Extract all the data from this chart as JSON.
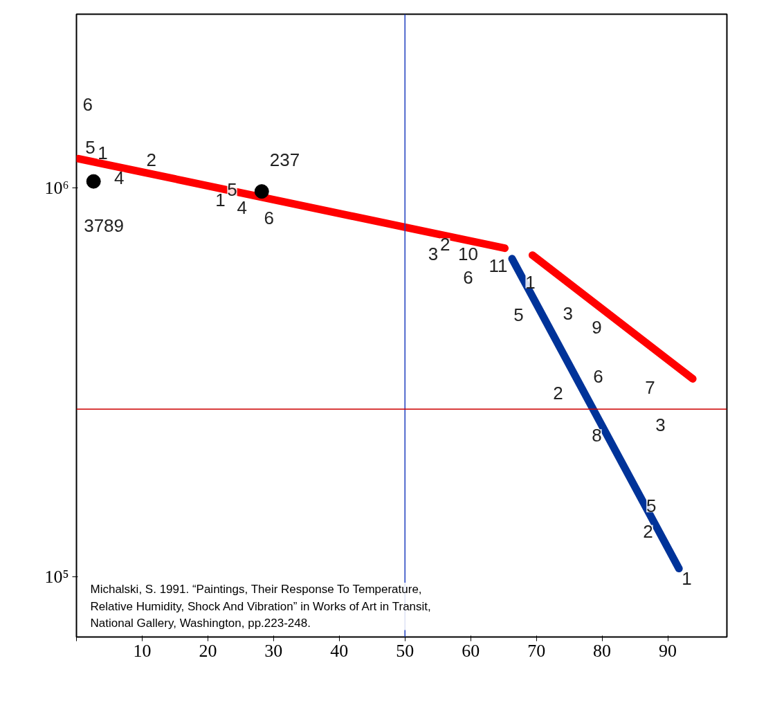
{
  "chart_data": {
    "type": "line",
    "log": "y",
    "grid": false,
    "xlim": [
      0,
      99
    ],
    "ylim": [
      70000,
      2800000
    ],
    "xticks": [
      {
        "value": 0,
        "label": null
      },
      10,
      20,
      30,
      40,
      50,
      60,
      70,
      80,
      90
    ],
    "yticks": [
      {
        "value": 100000,
        "label": "10⁵"
      },
      {
        "value": 1000000,
        "label": "10⁶"
      }
    ],
    "series": [
      {
        "color": "#ff0000",
        "x": [
          0.3,
          65.2
        ],
        "values": [
          1190000,
          700000
        ]
      },
      {
        "color": "#ff0000",
        "x": [
          69.4,
          93.8
        ],
        "values": [
          672000,
          323000
        ]
      },
      {
        "color": "#003399",
        "x": [
          66.3,
          91.7
        ],
        "values": [
          658000,
          105000
        ]
      },
      {
        "type": "scatter",
        "marker": "circle",
        "color": "#000000",
        "x": [
          2.6,
          28.2
        ],
        "values": [
          1040000,
          980000
        ]
      }
    ],
    "ref_lines": [
      {
        "axis": "x",
        "value": 50,
        "color": "#1f3fbf"
      },
      {
        "axis": "y",
        "value": 270000,
        "color": "#cc0000"
      }
    ],
    "annotations": [
      {
        "text": "6",
        "x": 1.7,
        "y": 1640000
      },
      {
        "text": "5",
        "x": 2.1,
        "y": 1270000
      },
      {
        "text": "1",
        "x": 4.0,
        "y": 1230000
      },
      {
        "text": "4",
        "x": 6.5,
        "y": 1060000
      },
      {
        "text": "2",
        "x": 11.4,
        "y": 1180000
      },
      {
        "text": "3789",
        "x": 2.6,
        "y": 1040000
      },
      {
        "text": "237",
        "x": 31.7,
        "y": 1180000
      },
      {
        "text": "1",
        "x": 21.9,
        "y": 930000
      },
      {
        "text": "5",
        "x": 23.7,
        "y": 990000
      },
      {
        "text": "4",
        "x": 25.2,
        "y": 890000
      },
      {
        "text": "6",
        "x": 29.3,
        "y": 836000
      },
      {
        "text": "3",
        "x": 54.3,
        "y": 678000
      },
      {
        "text": "2",
        "x": 56.1,
        "y": 716000
      },
      {
        "text": "10",
        "x": 59.6,
        "y": 678000
      },
      {
        "text": "6",
        "x": 59.6,
        "y": 588000
      },
      {
        "text": "11",
        "x": 64.2,
        "y": 631000
      },
      {
        "text": "1",
        "x": 69.1,
        "y": 573000
      },
      {
        "text": "5",
        "x": 67.3,
        "y": 471000
      },
      {
        "text": "3",
        "x": 74.8,
        "y": 476000
      },
      {
        "text": "9",
        "x": 79.2,
        "y": 438000
      },
      {
        "text": "6",
        "x": 79.4,
        "y": 327000
      },
      {
        "text": "7",
        "x": 87.3,
        "y": 307000
      },
      {
        "text": "2",
        "x": 73.3,
        "y": 297000
      },
      {
        "text": "3",
        "x": 88.9,
        "y": 246000
      },
      {
        "text": "8",
        "x": 79.2,
        "y": 231000
      },
      {
        "text": "5",
        "x": 87.5,
        "y": 152000
      },
      {
        "text": "2",
        "x": 87.0,
        "y": 131000
      },
      {
        "text": "1",
        "x": 92.9,
        "y": 99000
      },
      "Michalski, S. 1991. “Paintings, Their Response To Temperature, Relative Humidity, Shock And Vibration” in Works of Art in Transit, National Gallery, Washington, pp.223-248."
    ]
  }
}
